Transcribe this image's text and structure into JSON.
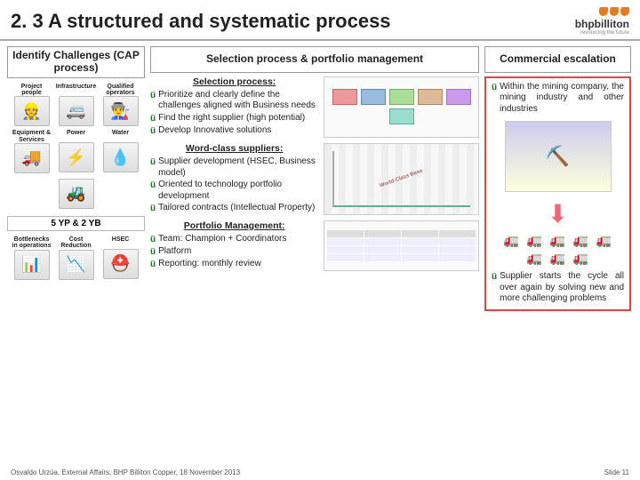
{
  "header": {
    "title": "2. 3 A structured and systematic process",
    "logo_text": "bhpbilliton",
    "logo_tagline": "resourcing the future"
  },
  "col1": {
    "heading": "Identify Challenges (CAP process)",
    "row1": [
      {
        "label": "Project people",
        "icon": "👷"
      },
      {
        "label": "Infrastructure",
        "icon": "🚐"
      },
      {
        "label": "Qualified operators",
        "icon": "👨‍🏭"
      }
    ],
    "row2": [
      {
        "label": "Equipment & Services",
        "icon": "🚚"
      },
      {
        "label": "Power",
        "icon": "⚡"
      },
      {
        "label": "Water",
        "icon": "💧"
      }
    ],
    "row3_icon": "🚜",
    "sub_heading": "5 YP & 2 YB",
    "row4": [
      {
        "label": "Bottlenecks in operations",
        "icon": "📊"
      },
      {
        "label": "Cost Reduction",
        "icon": "📉"
      },
      {
        "label": "HSEC",
        "icon": "⛑️"
      }
    ]
  },
  "col2": {
    "heading": "Selection process & portfolio management",
    "section1": {
      "title": "Selection process:",
      "items": [
        "Prioritize and clearly define the challenges aligned with Business needs",
        "Find the right supplier (high potential)",
        "Develop Innovative solutions"
      ]
    },
    "section2": {
      "title": "Word-class suppliers:",
      "items": [
        "Supplier development (HSEC, Business model)",
        "Oriented to technology portfolio development",
        "Tailored contracts (Intellectual Property)"
      ],
      "chart_label": "World-Class Base"
    },
    "section3": {
      "title": "Portfolio Management:",
      "items": [
        "Team: Champion + Coordinators",
        "Platform",
        "Reporting: monthly review"
      ]
    }
  },
  "col3": {
    "heading": "Commercial escalation",
    "point1": "Within the mining company, the mining industry and other industries",
    "truck_icon": "🚛",
    "truck_count": 8,
    "point2": "Supplier starts the cycle all over again by solving new and more challenging problems"
  },
  "footer": {
    "left": "Osvaldo Urzúa, External Affairs, BHP Billiton Copper, 18 November 2013",
    "right": "Slide 11"
  },
  "colors": {
    "accent_orange": "#e67b1e",
    "border_red": "#d44444",
    "check_green": "#1a7a1a"
  }
}
